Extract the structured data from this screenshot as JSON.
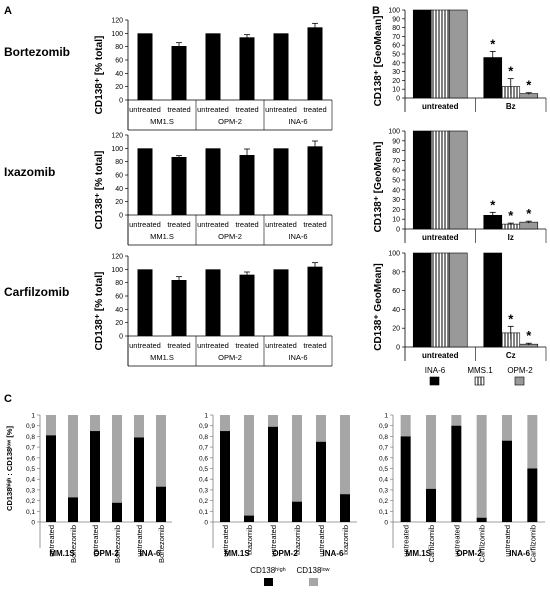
{
  "panel_letters": [
    "A",
    "B",
    "C"
  ],
  "colors": {
    "black": "#000000",
    "gray": "#999999",
    "hatch": "#ffffff",
    "axis": "#7f7f7f",
    "light_gray": "#a6a6a6"
  },
  "chart_data": [
    {
      "id": "A1",
      "type": "bar",
      "row_title": "Bortezomib",
      "ylabel": "CD138⁺ [% total]",
      "ylim": [
        0,
        120
      ],
      "yticks": [
        0,
        20,
        40,
        60,
        80,
        100,
        120
      ],
      "conditions": [
        "untreated",
        "treated",
        "untreated",
        "treated",
        "untreated",
        "treated"
      ],
      "groups": [
        "MM1.S",
        "OPM-2",
        "INA-6"
      ],
      "values": [
        100,
        81,
        100,
        94,
        100,
        109
      ],
      "errors": [
        0,
        5,
        0,
        4,
        0,
        6
      ]
    },
    {
      "id": "A2",
      "type": "bar",
      "row_title": "Ixazomib",
      "ylabel": "CD138⁺ [% total]",
      "ylim": [
        0,
        120
      ],
      "yticks": [
        0,
        20,
        40,
        60,
        80,
        100,
        120
      ],
      "conditions": [
        "untreated",
        "treated",
        "untreated",
        "treated",
        "untreated",
        "treated"
      ],
      "groups": [
        "MM1.S",
        "OPM-2",
        "INA-6"
      ],
      "values": [
        100,
        87,
        100,
        90,
        100,
        103
      ],
      "errors": [
        0,
        2,
        0,
        9,
        0,
        8
      ]
    },
    {
      "id": "A3",
      "type": "bar",
      "row_title": "Carfilzomib",
      "ylabel": "CD138⁺ [% total]",
      "ylim": [
        0,
        120
      ],
      "yticks": [
        0,
        20,
        40,
        60,
        80,
        100,
        120
      ],
      "conditions": [
        "untreated",
        "treated",
        "untreated",
        "treated",
        "untreated",
        "treated"
      ],
      "groups": [
        "MM1.S",
        "OPM-2",
        "INA-6"
      ],
      "values": [
        100,
        84,
        100,
        92,
        100,
        104
      ],
      "errors": [
        0,
        5,
        0,
        4,
        0,
        6
      ]
    },
    {
      "id": "B1",
      "type": "bar",
      "ylabel": "CD138⁺ [GeoMean]",
      "ylim": [
        0,
        100
      ],
      "yticks": [
        0,
        10,
        20,
        30,
        40,
        50,
        60,
        70,
        80,
        90,
        100
      ],
      "categories": [
        "untreated",
        "Bz"
      ],
      "series": [
        {
          "name": "INA-6",
          "values": [
            100,
            46
          ],
          "errors": [
            0,
            7
          ]
        },
        {
          "name": "MMS.1",
          "values": [
            100,
            13
          ],
          "errors": [
            0,
            9
          ]
        },
        {
          "name": "OPM-2",
          "values": [
            100,
            5
          ],
          "errors": [
            0,
            1
          ]
        }
      ],
      "annotations": [
        "*",
        "*",
        "*"
      ]
    },
    {
      "id": "B2",
      "type": "bar",
      "ylabel": "CD138⁺ [GeoMean]",
      "ylim": [
        0,
        100
      ],
      "yticks": [
        0,
        10,
        20,
        30,
        40,
        50,
        60,
        70,
        80,
        90,
        100
      ],
      "categories": [
        "untreated",
        "Iz"
      ],
      "series": [
        {
          "name": "INA-6",
          "values": [
            100,
            14
          ],
          "errors": [
            0,
            3
          ]
        },
        {
          "name": "MMS.1",
          "values": [
            100,
            5
          ],
          "errors": [
            0,
            1
          ]
        },
        {
          "name": "OPM-2",
          "values": [
            100,
            7
          ],
          "errors": [
            0,
            1
          ]
        }
      ],
      "annotations": [
        "*",
        "*",
        "*"
      ]
    },
    {
      "id": "B3",
      "type": "bar",
      "ylabel": "CD138⁺ GeoMean]",
      "ylim": [
        0,
        100
      ],
      "yticks": [
        0,
        20,
        40,
        60,
        80,
        100
      ],
      "categories": [
        "untreated",
        "Cz"
      ],
      "series": [
        {
          "name": "INA-6",
          "values": [
            100,
            100
          ],
          "errors": [
            0,
            0
          ]
        },
        {
          "name": "MMS.1",
          "values": [
            100,
            15
          ],
          "errors": [
            0,
            7
          ]
        },
        {
          "name": "OPM-2",
          "values": [
            100,
            3
          ],
          "errors": [
            0,
            1
          ]
        }
      ],
      "annotations": [
        "*",
        "*"
      ]
    },
    {
      "id": "C1",
      "type": "bar",
      "stacked": true,
      "ylabel": "CD138ʰⁱᵍʰ : CD138ˡᵒʷ [%]",
      "ylim": [
        0,
        1
      ],
      "yticks": [
        "0",
        "0,1",
        "0,2",
        "0,3",
        "0,4",
        "0,5",
        "0,6",
        "0,7",
        "0,8",
        "0,9",
        "1"
      ],
      "categories": [
        "untreated",
        "Bortezomib",
        "untreated",
        "Bortezomib",
        "untreated",
        "Bortezomib"
      ],
      "groups": [
        "MM.1S",
        "OPM-2",
        "INA-6"
      ],
      "high": [
        0.81,
        0.23,
        0.85,
        0.18,
        0.79,
        0.33
      ]
    },
    {
      "id": "C2",
      "type": "bar",
      "stacked": true,
      "ylim": [
        0,
        1
      ],
      "yticks": [
        "0",
        "0,1",
        "0,2",
        "0,3",
        "0,4",
        "0,5",
        "0,6",
        "0,7",
        "0,8",
        "0,9",
        "1"
      ],
      "categories": [
        "untreated",
        "Ixazomib",
        "untreated",
        "Ixazomib",
        "untreated",
        "Ixazomib"
      ],
      "groups": [
        "MM.1S",
        "OPM-2",
        "INA-6"
      ],
      "high": [
        0.85,
        0.06,
        0.89,
        0.19,
        0.75,
        0.26
      ]
    },
    {
      "id": "C3",
      "type": "bar",
      "stacked": true,
      "ylim": [
        0,
        1
      ],
      "yticks": [
        "0",
        "0,1",
        "0,2",
        "0,3",
        "0,4",
        "0,5",
        "0,6",
        "0,7",
        "0,8",
        "0,9",
        "1"
      ],
      "categories": [
        "untreated",
        "Carfilzomib",
        "untreated",
        "Carfilzomib",
        "untreated",
        "Carfilzomib"
      ],
      "groups": [
        "MM.1S",
        "OPM-2",
        "INA-6"
      ],
      "high": [
        0.8,
        0.31,
        0.9,
        0.04,
        0.76,
        0.5
      ]
    }
  ],
  "legend_B": [
    "INA-6",
    "MMS.1",
    "OPM-2"
  ],
  "legend_C": [
    "CD138ʰⁱᵍʰ",
    "CD138ˡᵒʷ"
  ]
}
